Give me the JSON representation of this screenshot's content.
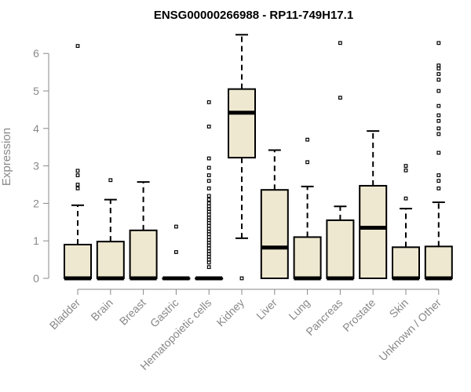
{
  "chart_data": {
    "type": "boxplot",
    "title": "ENSG00000266988 - RP11-749H17.1",
    "ylabel": "Expression",
    "xlabel": "",
    "ylim": [
      0,
      6.6
    ],
    "yticks": [
      "0",
      "1",
      "2",
      "3",
      "4",
      "5",
      "6"
    ],
    "grid": false,
    "colors": {
      "box_fill": "#efe8d0",
      "box_stroke": "#000000",
      "median": "#000000",
      "axis": "#888888"
    },
    "categories": [
      "Bladder",
      "Brain",
      "Breast",
      "Gastric",
      "Hematopoietic cells",
      "Kidney",
      "Liver",
      "Lung",
      "Pancreas",
      "Prostate",
      "Skin",
      "Unknown / Other"
    ],
    "boxes": [
      {
        "name": "Bladder",
        "q1": 0,
        "median": 0,
        "q3": 0.9,
        "whisker_low": 0,
        "whisker_high": 1.95,
        "outliers": [
          2.4,
          2.5,
          2.75,
          2.87,
          6.2
        ]
      },
      {
        "name": "Brain",
        "q1": 0,
        "median": 0,
        "q3": 0.98,
        "whisker_low": 0,
        "whisker_high": 2.1,
        "outliers": [
          2.62
        ]
      },
      {
        "name": "Breast",
        "q1": 0,
        "median": 0,
        "q3": 1.28,
        "whisker_low": 0,
        "whisker_high": 2.57,
        "outliers": []
      },
      {
        "name": "Gastric",
        "q1": 0,
        "median": 0,
        "q3": 0,
        "whisker_low": 0,
        "whisker_high": 0,
        "outliers": [
          0.7,
          1.38
        ]
      },
      {
        "name": "Hematopoietic cells",
        "q1": 0,
        "median": 0,
        "q3": 0,
        "whisker_low": 0,
        "whisker_high": 0,
        "outliers": [
          0.3,
          0.42,
          0.5,
          0.58,
          0.65,
          0.72,
          0.8,
          0.88,
          0.95,
          1.02,
          1.1,
          1.18,
          1.25,
          1.32,
          1.4,
          1.48,
          1.55,
          1.62,
          1.7,
          1.78,
          1.85,
          1.92,
          2.0,
          2.1,
          2.2,
          2.4,
          2.6,
          2.75,
          2.95,
          3.2,
          4.05,
          4.7
        ]
      },
      {
        "name": "Kidney",
        "q1": 3.22,
        "median": 4.42,
        "q3": 5.05,
        "whisker_low": 1.07,
        "whisker_high": 6.5,
        "outliers": [
          0
        ]
      },
      {
        "name": "Liver",
        "q1": 0,
        "median": 0.82,
        "q3": 2.36,
        "whisker_low": 0,
        "whisker_high": 3.42,
        "outliers": []
      },
      {
        "name": "Lung",
        "q1": 0,
        "median": 0,
        "q3": 1.1,
        "whisker_low": 0,
        "whisker_high": 2.45,
        "outliers": [
          3.1,
          3.7
        ]
      },
      {
        "name": "Pancreas",
        "q1": 0,
        "median": 0,
        "q3": 1.55,
        "whisker_low": 0,
        "whisker_high": 1.92,
        "outliers": [
          4.82,
          6.28
        ]
      },
      {
        "name": "Prostate",
        "q1": 0,
        "median": 1.35,
        "q3": 2.47,
        "whisker_low": 0,
        "whisker_high": 3.93,
        "outliers": []
      },
      {
        "name": "Skin",
        "q1": 0,
        "median": 0,
        "q3": 0.83,
        "whisker_low": 0,
        "whisker_high": 1.86,
        "outliers": [
          2.13,
          2.88,
          3.0
        ]
      },
      {
        "name": "Unknown / Other",
        "q1": 0,
        "median": 0,
        "q3": 0.85,
        "whisker_low": 0,
        "whisker_high": 2.03,
        "outliers": [
          2.4,
          2.6,
          2.75,
          3.35,
          3.85,
          4.0,
          4.2,
          4.35,
          4.6,
          5.0,
          5.3,
          5.45,
          5.6,
          5.68,
          6.28
        ]
      }
    ]
  }
}
